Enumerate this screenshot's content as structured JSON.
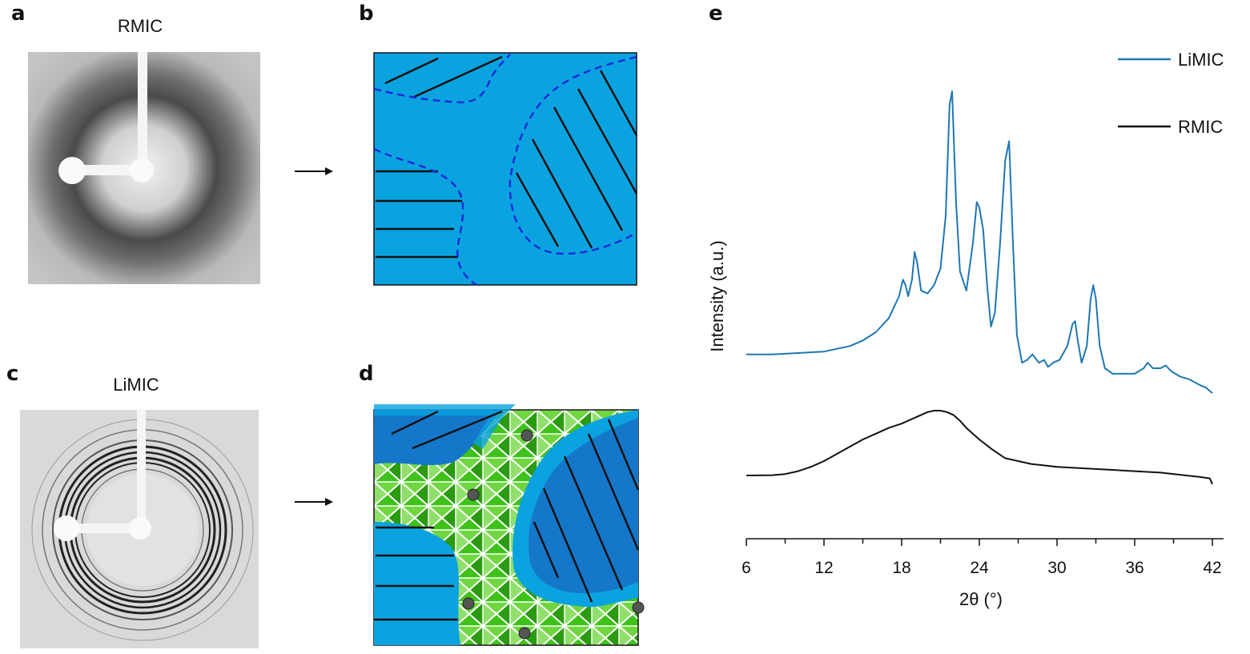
{
  "panels": {
    "a": {
      "letter": "a",
      "title": "RMIC"
    },
    "b": {
      "letter": "b"
    },
    "c": {
      "letter": "c",
      "title": "LiMIC"
    },
    "d": {
      "letter": "d"
    },
    "e": {
      "letter": "e"
    }
  },
  "colors": {
    "amorphous_blue": "#0aa3e0",
    "crystal_blue": "#1577c9",
    "boundary_dash": "#1a2bd9",
    "green_network": "#3ec21a",
    "limic_line": "#1f77b4",
    "rmic_line": "#111111"
  },
  "chart_data": {
    "type": "line",
    "title": "",
    "xlabel": "2θ (°)",
    "ylabel": "Intensity (a.u.)",
    "xlim": [
      6,
      42.5
    ],
    "x_ticks": [
      6,
      12,
      18,
      24,
      30,
      36,
      42
    ],
    "y_scale": "arbitrary",
    "legend_position": "top-right",
    "series": [
      {
        "name": "LiMIC",
        "color": "#1f77b4",
        "x": [
          6,
          8,
          10,
          12,
          14,
          15,
          16,
          17,
          17.8,
          18.1,
          18.3,
          18.5,
          18.8,
          19.0,
          19.2,
          19.5,
          20.0,
          20.5,
          21.0,
          21.4,
          21.7,
          21.9,
          22.2,
          22.5,
          23.0,
          23.5,
          23.8,
          24.0,
          24.3,
          24.6,
          24.9,
          25.2,
          25.6,
          26.0,
          26.3,
          26.6,
          26.9,
          27.3,
          27.7,
          28.1,
          28.6,
          29.0,
          29.3,
          29.7,
          30.2,
          30.8,
          31.2,
          31.4,
          31.6,
          31.9,
          32.3,
          32.6,
          32.8,
          33.0,
          33.3,
          33.7,
          34.3,
          35.0,
          36.0,
          36.7,
          37.0,
          37.4,
          38.0,
          38.4,
          38.8,
          39.5,
          40.2,
          41.0,
          41.5,
          42.0
        ],
        "y": [
          0.05,
          0.05,
          0.055,
          0.06,
          0.08,
          0.1,
          0.13,
          0.18,
          0.26,
          0.32,
          0.3,
          0.26,
          0.32,
          0.42,
          0.38,
          0.28,
          0.27,
          0.3,
          0.36,
          0.55,
          0.95,
          1.0,
          0.6,
          0.35,
          0.28,
          0.45,
          0.6,
          0.58,
          0.5,
          0.3,
          0.15,
          0.2,
          0.45,
          0.75,
          0.82,
          0.45,
          0.12,
          0.02,
          0.03,
          0.05,
          0.02,
          0.03,
          0.005,
          0.02,
          0.03,
          0.08,
          0.16,
          0.17,
          0.1,
          0.02,
          0.08,
          0.25,
          0.3,
          0.25,
          0.08,
          0.0,
          -0.02,
          -0.02,
          -0.02,
          0.0,
          0.02,
          0.0,
          0.0,
          0.01,
          -0.01,
          -0.03,
          -0.04,
          -0.06,
          -0.07,
          -0.09
        ]
      },
      {
        "name": "RMIC",
        "color": "#111111",
        "x": [
          6,
          8,
          9,
          10,
          11,
          12,
          13,
          14,
          15,
          16,
          17,
          18,
          19,
          20,
          20.5,
          21,
          21.5,
          22,
          22.5,
          23,
          24,
          25,
          26,
          27,
          28,
          29,
          30,
          32,
          34,
          36,
          38,
          40,
          41,
          41.8,
          42.0
        ],
        "y": [
          0.0,
          0.002,
          0.01,
          0.03,
          0.06,
          0.1,
          0.15,
          0.2,
          0.25,
          0.29,
          0.33,
          0.36,
          0.4,
          0.44,
          0.45,
          0.45,
          0.44,
          0.42,
          0.38,
          0.33,
          0.25,
          0.18,
          0.12,
          0.1,
          0.08,
          0.07,
          0.06,
          0.05,
          0.04,
          0.03,
          0.02,
          0.0,
          -0.01,
          -0.02,
          -0.06
        ]
      }
    ]
  }
}
